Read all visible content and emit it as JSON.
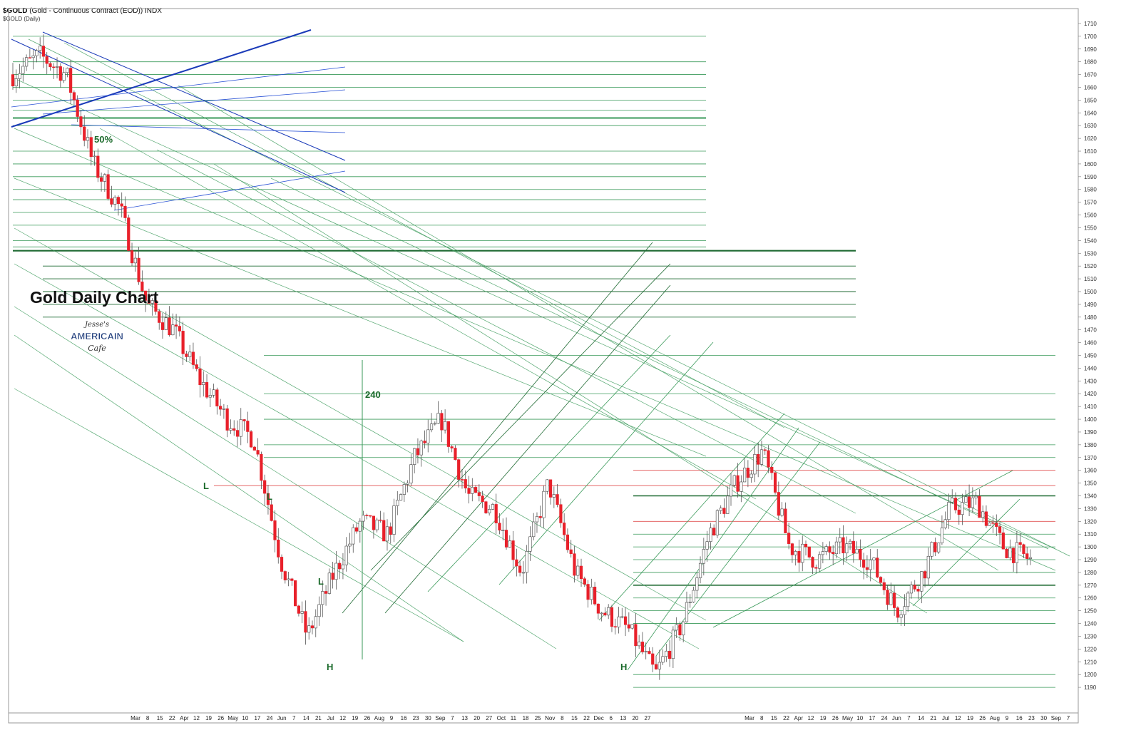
{
  "header": {
    "symbol": "$GOLD",
    "description": "(Gold - Continuous Contract (EOD))",
    "exchange": "INDX",
    "subtitle": "$GOLD (Daily)"
  },
  "title": "Gold Daily Chart",
  "logo_text": {
    "line1": "Jesse's",
    "line2": "AMERICAIN",
    "line3": "Cafe"
  },
  "colors": {
    "up_candle": "#ffffff",
    "down_candle": "#e8202a",
    "trend_lines": "#3a9a5a",
    "blue_lines": "#2a52d6",
    "red_lines": "#e05050"
  },
  "chart_data": {
    "type": "candlestick",
    "title": "Gold Daily Chart",
    "y_axis": {
      "side": "right",
      "ylim": [
        1180,
        1715
      ],
      "tick_step": 10
    },
    "x_tick_labels": [
      "Mar",
      "8",
      "15",
      "22",
      "Apr",
      "12",
      "19",
      "26",
      "May",
      "10",
      "17",
      "24",
      "Jun",
      "7",
      "14",
      "21",
      "Jul",
      "12",
      "19",
      "26",
      "Aug",
      "9",
      "16",
      "23",
      "30",
      "Sep",
      "7",
      "13",
      "20",
      "27",
      "Oct",
      "11",
      "18",
      "25",
      "Nov",
      "8",
      "15",
      "22",
      "Dec",
      "6",
      "13",
      "20",
      "27",
      "Mar",
      "8",
      "15",
      "22",
      "Apr",
      "12",
      "19",
      "26",
      "May",
      "10",
      "17",
      "24",
      "Jun",
      "7",
      "14",
      "21",
      "Jul",
      "12",
      "19",
      "26",
      "Aug",
      "9",
      "16",
      "23",
      "30",
      "Sep",
      "7"
    ],
    "close_series_approx": [
      {
        "x": "start",
        "y": 1670
      },
      {
        "x": "Mar 8",
        "y": 1685
      },
      {
        "x": "Mar 22",
        "y": 1670
      },
      {
        "x": "Apr 5",
        "y": 1600
      },
      {
        "x": "Apr 12",
        "y": 1565
      },
      {
        "x": "Apr 19",
        "y": 1490
      },
      {
        "x": "Apr 26",
        "y": 1470
      },
      {
        "x": "May 10",
        "y": 1430
      },
      {
        "x": "May 24",
        "y": 1400
      },
      {
        "x": "Jun 7",
        "y": 1385
      },
      {
        "x": "Jun 21",
        "y": 1290
      },
      {
        "x": "Jun 28",
        "y": 1230
      },
      {
        "x": "Jul 12",
        "y": 1280
      },
      {
        "x": "Jul 26",
        "y": 1320
      },
      {
        "x": "Aug 9",
        "y": 1310
      },
      {
        "x": "Aug 23",
        "y": 1370
      },
      {
        "x": "Aug 30",
        "y": 1400
      },
      {
        "x": "Sep 13",
        "y": 1340
      },
      {
        "x": "Sep 27",
        "y": 1330
      },
      {
        "x": "Oct 11",
        "y": 1280
      },
      {
        "x": "Oct 25",
        "y": 1350
      },
      {
        "x": "Nov 8",
        "y": 1280
      },
      {
        "x": "Nov 22",
        "y": 1250
      },
      {
        "x": "Dec 6",
        "y": 1235
      },
      {
        "x": "Dec 20",
        "y": 1200
      },
      {
        "x": "Dec 27",
        "y": 1240
      },
      {
        "x": "Mar 1",
        "y": 1310
      },
      {
        "x": "Mar 15",
        "y": 1350
      },
      {
        "x": "Mar 22",
        "y": 1375
      },
      {
        "x": "Apr 5",
        "y": 1300
      },
      {
        "x": "Apr 19",
        "y": 1290
      },
      {
        "x": "May 3",
        "y": 1300
      },
      {
        "x": "May 17",
        "y": 1290
      },
      {
        "x": "Jun 7",
        "y": 1250
      },
      {
        "x": "Jun 21",
        "y": 1280
      },
      {
        "x": "Jul 5",
        "y": 1330
      },
      {
        "x": "Jul 19",
        "y": 1335
      },
      {
        "x": "Aug 2",
        "y": 1300
      },
      {
        "x": "Aug 16",
        "y": 1290
      }
    ],
    "annotations": [
      {
        "text": "50%",
        "price": 1615
      },
      {
        "text": "240",
        "price": 1415
      },
      {
        "text": "L",
        "price": 1340
      },
      {
        "text": "L",
        "price": 1330
      },
      {
        "text": "L",
        "price": 1260
      },
      {
        "text": "H",
        "price": 1190
      },
      {
        "text": "H",
        "price": 1190
      }
    ]
  }
}
